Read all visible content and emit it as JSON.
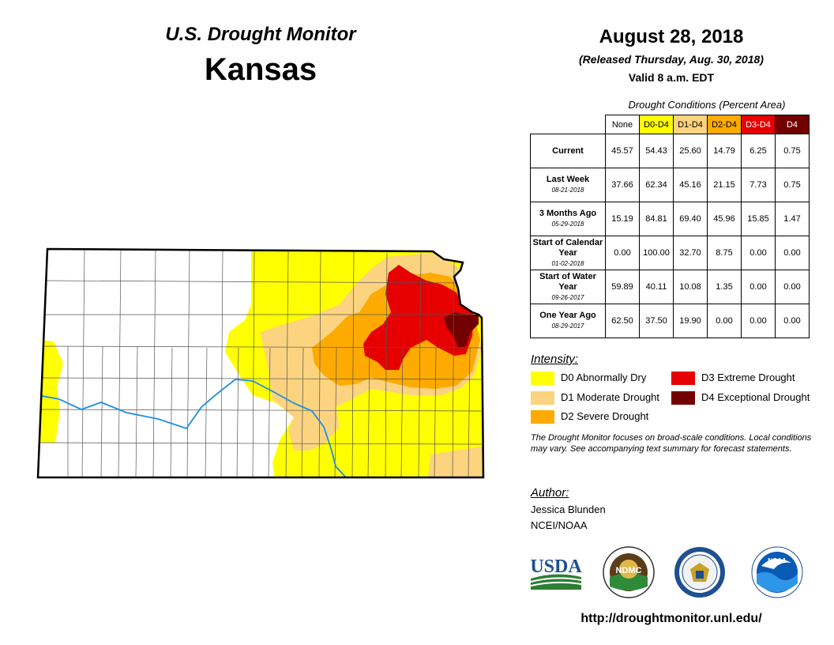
{
  "header": {
    "monitor_title": "U.S. Drought Monitor",
    "state": "Kansas",
    "date": "August 28, 2018",
    "released": "(Released Thursday, Aug. 30, 2018)",
    "valid": "Valid 8 a.m. EDT"
  },
  "table": {
    "title": "Drought Conditions (Percent Area)",
    "columns": [
      "None",
      "D0-D4",
      "D1-D4",
      "D2-D4",
      "D3-D4",
      "D4"
    ],
    "rows": [
      {
        "label": "Current",
        "date": "",
        "values": [
          "45.57",
          "54.43",
          "25.60",
          "14.79",
          "6.25",
          "0.75"
        ]
      },
      {
        "label": "Last Week",
        "date": "08-21-2018",
        "values": [
          "37.66",
          "62.34",
          "45.16",
          "21.15",
          "7.73",
          "0.75"
        ]
      },
      {
        "label": "3 Months Ago",
        "date": "05-29-2018",
        "values": [
          "15.19",
          "84.81",
          "69.40",
          "45.96",
          "15.85",
          "1.47"
        ]
      },
      {
        "label": "Start of Calendar Year",
        "date": "01-02-2018",
        "values": [
          "0.00",
          "100.00",
          "32.70",
          "8.75",
          "0.00",
          "0.00"
        ]
      },
      {
        "label": "Start of Water Year",
        "date": "09-26-2017",
        "values": [
          "59.89",
          "40.11",
          "10.08",
          "1.35",
          "0.00",
          "0.00"
        ]
      },
      {
        "label": "One Year Ago",
        "date": "08-29-2017",
        "values": [
          "62.50",
          "37.50",
          "19.90",
          "0.00",
          "0.00",
          "0.00"
        ]
      }
    ]
  },
  "legend": {
    "title": "Intensity:",
    "items": [
      {
        "label": "D0 Abnormally Dry",
        "color": "#ffff00"
      },
      {
        "label": "D1 Moderate Drought",
        "color": "#fcd37f"
      },
      {
        "label": "D2 Severe Drought",
        "color": "#ffaa00"
      },
      {
        "label": "D3 Extreme Drought",
        "color": "#e60000"
      },
      {
        "label": "D4 Exceptional Drought",
        "color": "#730000"
      }
    ]
  },
  "note": "The Drought Monitor focuses on broad-scale conditions. Local conditions may vary. See accompanying text summary for forecast statements.",
  "author": {
    "label": "Author:",
    "name": "Jessica Blunden",
    "org": "NCEI/NOAA"
  },
  "logos": {
    "usda": "USDA",
    "ndmc": "NDMC",
    "noaa": "NOAA",
    "commerce_icon": "commerce-seal-icon"
  },
  "url": "http://droughtmonitor.unl.edu/",
  "colors": {
    "none": "#ffffff",
    "d0": "#ffff00",
    "d1": "#fcd37f",
    "d2": "#ffaa00",
    "d3": "#e60000",
    "d4": "#730000",
    "river": "#1f8fe0"
  }
}
